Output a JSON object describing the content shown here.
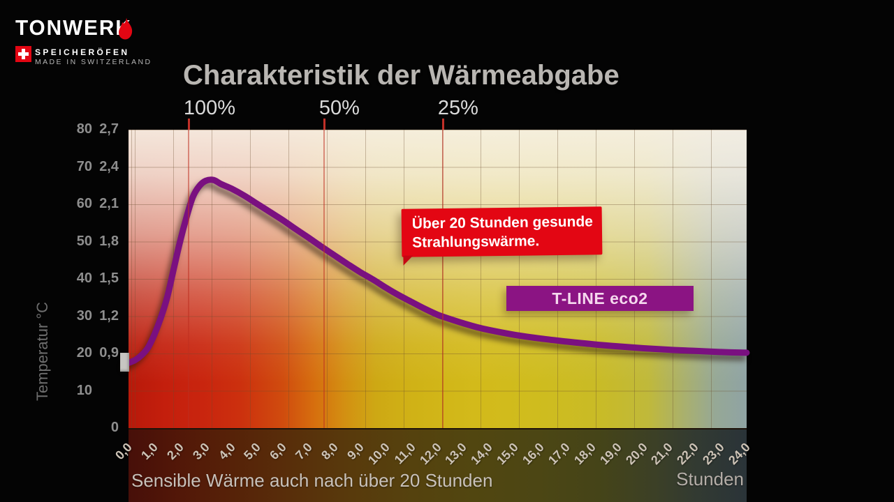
{
  "brand": {
    "name": "TONWERK",
    "tagline": "SPEICHERÖFEN",
    "origin": "MADE IN SWITZERLAND",
    "flame_color": "#e30613",
    "flag_color": "#e30613"
  },
  "title": "Charakteristik der Wärmeabgabe",
  "chart_data": {
    "type": "line",
    "title": "Charakteristik der Wärmeabgabe",
    "caption": "Sensible Wärme auch nach über 20 Stunden",
    "grid": true,
    "curve_color": "#7a1080",
    "x_axis": {
      "label": "Stunden",
      "min": 0,
      "max": 24,
      "tick_step": 1,
      "tick_labels": [
        "0,0",
        "1,0",
        "2,0",
        "3,0",
        "4,0",
        "5,0",
        "6,0",
        "7,0",
        "8,0",
        "9,0",
        "10,0",
        "11,0",
        "12,0",
        "13,0",
        "14,0",
        "15,0",
        "16,0",
        "17,0",
        "18,0",
        "19,0",
        "20,0",
        "21,0",
        "22,0",
        "23,0",
        "24,0"
      ]
    },
    "y_axis_left": {
      "label": "Temperatur °C",
      "min": 0,
      "max": 80,
      "ticks": [
        {
          "temp": "80",
          "alt": "2,7"
        },
        {
          "temp": "70",
          "alt": "2,4"
        },
        {
          "temp": "60",
          "alt": "2,1"
        },
        {
          "temp": "50",
          "alt": "1,8"
        },
        {
          "temp": "40",
          "alt": "1,5"
        },
        {
          "temp": "30",
          "alt": "1,2"
        },
        {
          "temp": "20",
          "alt": "0,9"
        },
        {
          "temp": "10",
          "alt": ""
        },
        {
          "temp": "",
          "alt": "0"
        }
      ]
    },
    "percent_markers": [
      {
        "label": "100%",
        "hour": 2.33
      },
      {
        "label": "50%",
        "hour": 7.59
      },
      {
        "label": "25%",
        "hour": 12.2
      }
    ],
    "series": [
      {
        "name": "T-LINE eco2",
        "color": "#7a1080",
        "points": [
          [
            0,
            17.5
          ],
          [
            0.25,
            18.2
          ],
          [
            0.5,
            19.5
          ],
          [
            0.75,
            21.5
          ],
          [
            1,
            25
          ],
          [
            1.25,
            29.5
          ],
          [
            1.5,
            35
          ],
          [
            1.75,
            42.5
          ],
          [
            2,
            50
          ],
          [
            2.25,
            56.5
          ],
          [
            2.5,
            62
          ],
          [
            2.75,
            64.9
          ],
          [
            3,
            66.3
          ],
          [
            3.3,
            66.5
          ],
          [
            3.6,
            65.4
          ],
          [
            4,
            64.2
          ],
          [
            4.5,
            62.3
          ],
          [
            5,
            60.1
          ],
          [
            5.5,
            57.9
          ],
          [
            6,
            55.7
          ],
          [
            6.5,
            53.3
          ],
          [
            7,
            51
          ],
          [
            7.5,
            48.6
          ],
          [
            8,
            46.3
          ],
          [
            8.5,
            44
          ],
          [
            9,
            41.8
          ],
          [
            9.5,
            39.8
          ],
          [
            10,
            37.6
          ],
          [
            10.5,
            35.6
          ],
          [
            11,
            33.8
          ],
          [
            11.5,
            32
          ],
          [
            12,
            30.4
          ],
          [
            12.5,
            29.2
          ],
          [
            13,
            28.1
          ],
          [
            13.5,
            27.1
          ],
          [
            14,
            26.3
          ],
          [
            15,
            25
          ],
          [
            16,
            24
          ],
          [
            17,
            23.2
          ],
          [
            18,
            22.5
          ],
          [
            19,
            21.9
          ],
          [
            20,
            21.4
          ],
          [
            21,
            21
          ],
          [
            22,
            20.7
          ],
          [
            23,
            20.4
          ],
          [
            24,
            20.2
          ]
        ]
      }
    ],
    "annotations": {
      "callout": {
        "text_line1": "Über 20 Stunden gesunde",
        "text_line2": "Strahlungswärme.",
        "bg": "#e30613"
      },
      "series_label": {
        "text": "T-LINE eco2",
        "bg": "#8b1483"
      }
    }
  }
}
